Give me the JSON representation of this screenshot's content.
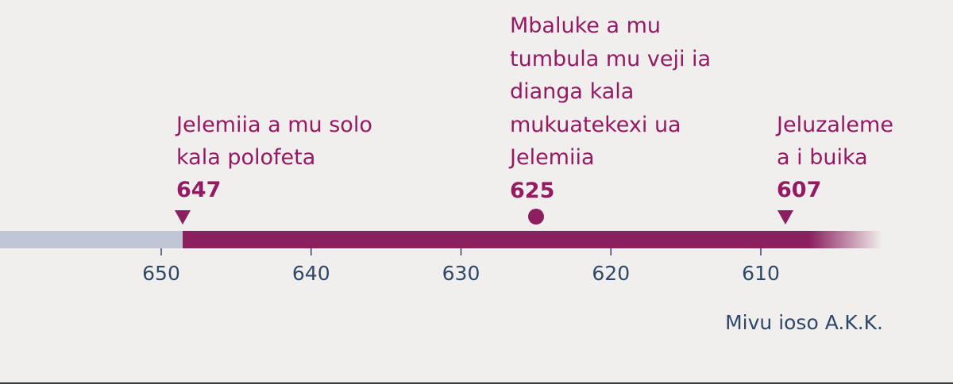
{
  "axis": {
    "ticks": [
      650,
      640,
      630,
      620,
      610
    ],
    "label": "Mivu ioso A.K.K."
  },
  "events": [
    {
      "label_lines": [
        "Jelemiia a mu solo",
        "kala polofeta"
      ],
      "year": 647
    },
    {
      "label_lines": [
        "Mbaluke a mu",
        "tumbula mu veji ia",
        "dianga kala",
        "mukuatekexi ua",
        "Jelemiia"
      ],
      "year": 625
    },
    {
      "label_lines": [
        "Jeluzaleme",
        "a i buika"
      ],
      "year": 607
    }
  ]
}
